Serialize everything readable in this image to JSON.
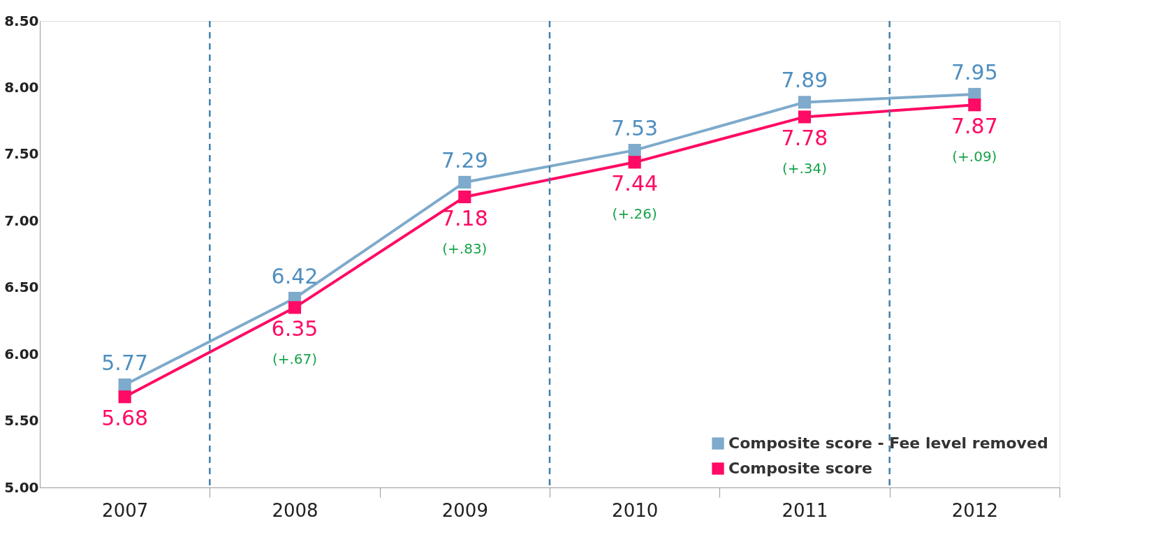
{
  "chart_data": {
    "type": "line",
    "x": [
      2007,
      2008,
      2009,
      2010,
      2011,
      2012
    ],
    "series": [
      {
        "name": "Composite score - Fee level removed",
        "color": "#7eaacb",
        "values": [
          5.77,
          6.42,
          7.29,
          7.53,
          7.89,
          7.95
        ]
      },
      {
        "name": "Composite score",
        "color": "#ff0a64",
        "values": [
          5.68,
          6.35,
          7.18,
          7.44,
          7.78,
          7.87
        ]
      }
    ],
    "data_labels": true,
    "marker": "square",
    "line_style": "solid",
    "grid": false,
    "legend": "bottom right",
    "xlim": [
      2006.5,
      2012.5
    ],
    "xticks": [
      {
        "value": 2007,
        "label": "2007"
      },
      {
        "value": 2007.5,
        "label": null
      },
      {
        "value": 2008,
        "label": "2008"
      },
      {
        "value": 2008.5,
        "label": null
      },
      {
        "value": 2009,
        "label": "2009"
      },
      {
        "value": 2009.5,
        "label": null
      },
      {
        "value": 2010,
        "label": "2010"
      },
      {
        "value": 2010.5,
        "label": null
      },
      {
        "value": 2011,
        "label": "2011"
      },
      {
        "value": 2011.5,
        "label": null
      },
      {
        "value": 2012,
        "label": "2012"
      },
      {
        "value": 2012.5,
        "label": null
      }
    ],
    "ylim": [
      5.0,
      8.5
    ],
    "yticks": [
      {
        "value": 5.0,
        "label": "5.00"
      },
      {
        "value": 5.5,
        "label": "5.50"
      },
      {
        "value": 6.0,
        "label": "6.00"
      },
      {
        "value": 6.5,
        "label": "6.50"
      },
      {
        "value": 7.0,
        "label": "7.00"
      },
      {
        "value": 7.5,
        "label": "7.50"
      },
      {
        "value": 8.0,
        "label": "8.00"
      },
      {
        "value": 8.5,
        "label": "8.50"
      }
    ],
    "ref_lines": [
      {
        "axis": "x",
        "value": 2007.5,
        "color": "#3f7fab",
        "line_style": "dashed"
      },
      {
        "axis": "x",
        "value": 2009.5,
        "color": "#3f7fab",
        "line_style": "dashed"
      },
      {
        "axis": "x",
        "value": 2011.5,
        "color": "#3f7fab",
        "line_style": "dashed"
      }
    ],
    "annotations": [
      "(+.67)",
      "(+.83)",
      "(+.26)",
      "(+.34)",
      "(+.09)"
    ]
  }
}
